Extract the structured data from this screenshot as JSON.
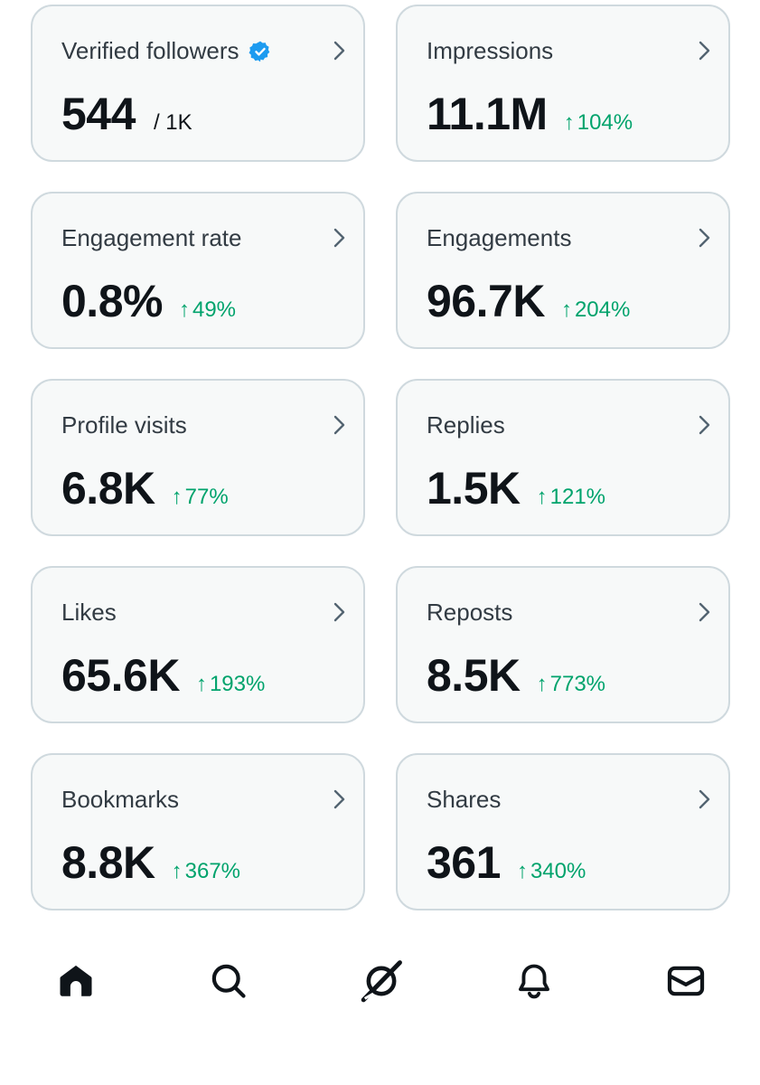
{
  "cards": [
    {
      "title": "Verified followers",
      "value": "544",
      "sub": "/ 1K",
      "change": ""
    },
    {
      "title": "Impressions",
      "value": "11.1M",
      "sub": "",
      "change": "104%"
    },
    {
      "title": "Engagement rate",
      "value": "0.8%",
      "sub": "",
      "change": "49%"
    },
    {
      "title": "Engagements",
      "value": "96.7K",
      "sub": "",
      "change": "204%"
    },
    {
      "title": "Profile visits",
      "value": "6.8K",
      "sub": "",
      "change": "77%"
    },
    {
      "title": "Replies",
      "value": "1.5K",
      "sub": "",
      "change": "121%"
    },
    {
      "title": "Likes",
      "value": "65.6K",
      "sub": "",
      "change": "193%"
    },
    {
      "title": "Reposts",
      "value": "8.5K",
      "sub": "",
      "change": "773%"
    },
    {
      "title": "Bookmarks",
      "value": "8.8K",
      "sub": "",
      "change": "367%"
    },
    {
      "title": "Shares",
      "value": "361",
      "sub": "",
      "change": "340%"
    }
  ],
  "icons": {
    "verified": "verified-badge-icon",
    "chevron": "chevron-right-icon",
    "change_arrow": "arrow-up-icon"
  },
  "nav": {
    "items": [
      "home-icon",
      "search-icon",
      "grok-icon",
      "notifications-bell-icon",
      "messages-envelope-icon"
    ],
    "active": "home-icon"
  },
  "colors": {
    "card_bg": "#f7f9f9",
    "card_border": "#cfd9de",
    "positive": "#00a36c",
    "verified_blue": "#1d9bf0",
    "text_primary": "#0f1419",
    "text_secondary": "#323b43"
  }
}
